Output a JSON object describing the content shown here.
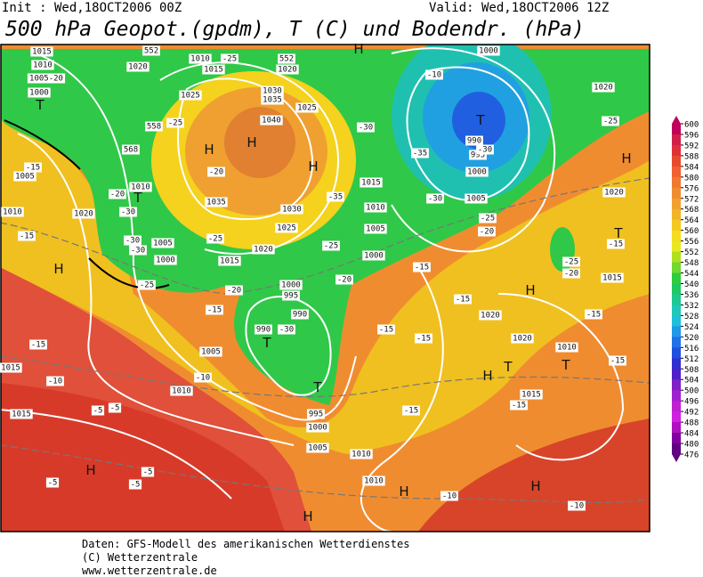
{
  "header": {
    "init": "Init : Wed,18OCT2006 00Z",
    "valid": "Valid: Wed,18OCT2006 12Z",
    "title": "500 hPa Geopot.(gpdm), T (C) und Bodendr. (hPa)"
  },
  "map": {
    "labels": [
      "1015",
      "1010",
      "1005-20",
      "1000",
      "T",
      "1020",
      "1010",
      "1015",
      "1020",
      "1025",
      "1030",
      "1035",
      "1040",
      "H",
      "H",
      "H",
      "1025",
      "1035",
      "1030",
      "1025",
      "1020",
      "1015",
      "1015",
      "1010",
      "1005",
      "1000",
      "1000",
      "995",
      "990",
      "990",
      "T",
      "T",
      "995",
      "1000",
      "1005",
      "1010",
      "1010",
      "H",
      "T",
      "990",
      "995",
      "1000",
      "1005",
      "1000",
      "1020",
      "H",
      "1020",
      "T",
      "1015",
      "H",
      "1020",
      "1020",
      "1010",
      "T",
      "T",
      "1015",
      "H",
      "1005",
      "1010",
      "1015",
      "1015",
      "H",
      "H",
      "H",
      "H",
      "H",
      "1005",
      "1010",
      "1020",
      "1010",
      "T",
      "1005",
      "1000",
      "-10",
      "-25",
      "-20",
      "-25",
      "-20",
      "-15",
      "-10",
      "-15",
      "-10",
      "-5",
      "-5",
      "-5",
      "-5",
      "-5",
      "-15",
      "-10",
      "-10",
      "-15",
      "-15",
      "-15",
      "-15",
      "-15",
      "-15",
      "-15",
      "-20",
      "-25",
      "-35",
      "-30",
      "-25",
      "-20",
      "-30",
      "-30",
      "-35",
      "-25",
      "-15",
      "-25",
      "-20",
      "-15",
      "-20",
      "-30",
      "-30",
      "-30",
      "-25",
      "-15",
      "-30",
      "-25",
      "552",
      "558",
      "552",
      "568"
    ]
  },
  "legend": {
    "ticks": [
      600,
      596,
      592,
      588,
      584,
      580,
      576,
      572,
      568,
      564,
      560,
      556,
      552,
      548,
      544,
      540,
      536,
      532,
      528,
      524,
      520,
      516,
      512,
      508,
      504,
      500,
      496,
      492,
      488,
      484,
      480,
      476
    ],
    "band_colors": [
      "#c0005a",
      "#d0204a",
      "#e0303a",
      "#e84a30",
      "#f06030",
      "#f07830",
      "#f08c30",
      "#f0a030",
      "#f0b428",
      "#f4c820",
      "#f4dc1e",
      "#e8e820",
      "#b0e020",
      "#70d830",
      "#30cc40",
      "#20c860",
      "#20c890",
      "#20c8b8",
      "#20c0d8",
      "#2098e8",
      "#2070e8",
      "#2050e0",
      "#3030d0",
      "#5020c8",
      "#8020c8",
      "#a020d0",
      "#c020d0",
      "#d020e0",
      "#b010c0",
      "#8000a0",
      "#600080"
    ]
  },
  "footer": {
    "lines": [
      "Daten: GFS-Modell des amerikanischen Wetterdienstes",
      "(C) Wetterzentrale",
      "www.wetterzentrale.de"
    ]
  }
}
